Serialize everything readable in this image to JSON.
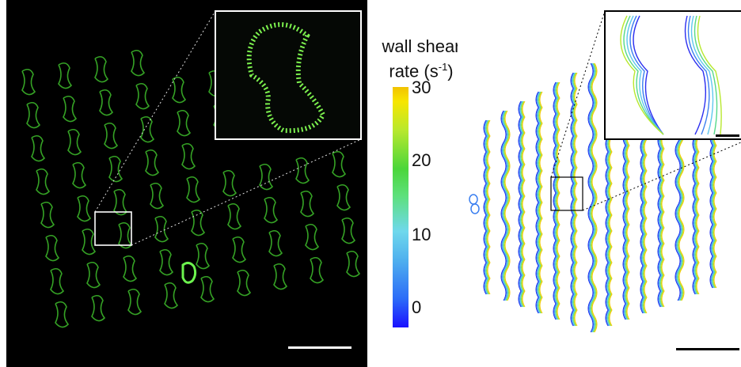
{
  "colorbar": {
    "title_line1": "wall shear",
    "title_line2": "rate (s",
    "title_sup": "-1",
    "title_close": ")",
    "ticks": [
      "30",
      "20",
      "10",
      "0"
    ]
  },
  "colors": {
    "fluorescence": "#58e04a",
    "background_left": "#000000",
    "inset_border": "#ffffff",
    "scale_bar_left": "#ffffff",
    "scale_bar_right": "#000000"
  }
}
